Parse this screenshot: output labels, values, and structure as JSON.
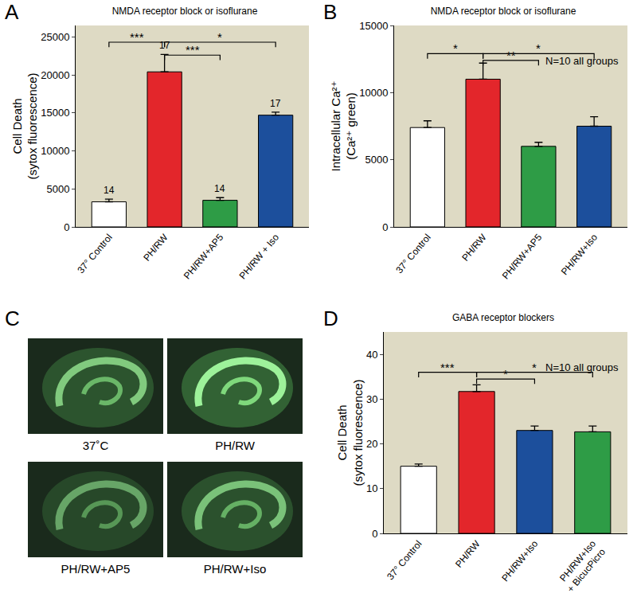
{
  "chart_data": [
    {
      "panel": "A",
      "type": "bar",
      "title": "NMDA receptor block or isoflurane",
      "ylabel": "Cell Death\n(sytox fluorescence)",
      "categories": [
        "37° Control",
        "PH/RW",
        "PH/RW+AP5",
        "PH/RW + Iso"
      ],
      "values": [
        3300,
        20400,
        3500,
        14700
      ],
      "errors": [
        350,
        2300,
        350,
        400
      ],
      "n": [
        14,
        17,
        14,
        17
      ],
      "colors": [
        "#ffffff",
        "#e3262b",
        "#2e9c46",
        "#1c4f9c"
      ],
      "ylim": [
        0,
        26500
      ],
      "yticks": [
        0,
        5000,
        10000,
        15000,
        20000,
        25000
      ],
      "comparisons": [
        {
          "from": 0,
          "to": 1,
          "y": 24300,
          "label": "***"
        },
        {
          "from": 1,
          "to": 3,
          "y": 24300,
          "label": "*"
        },
        {
          "from": 1,
          "to": 2,
          "y": 22600,
          "label": "***"
        }
      ]
    },
    {
      "panel": "B",
      "type": "bar",
      "title": "NMDA receptor block or isoflurane",
      "ylabel": "Intracellular Ca²⁺\n(Ca²⁺ green)",
      "categories": [
        "37° Control",
        "PH/RW",
        "PH/RW+AP5",
        "PH/RW+Iso"
      ],
      "values": [
        7400,
        11000,
        6000,
        7500
      ],
      "errors": [
        500,
        1200,
        300,
        700
      ],
      "note": "N=10 all groups",
      "colors": [
        "#ffffff",
        "#e3262b",
        "#2e9c46",
        "#1c4f9c"
      ],
      "ylim": [
        0,
        15000
      ],
      "yticks": [
        0,
        5000,
        10000,
        15000
      ],
      "comparisons": [
        {
          "from": 0,
          "to": 1,
          "y": 12900,
          "label": "*"
        },
        {
          "from": 1,
          "to": 3,
          "y": 12900,
          "label": "*"
        },
        {
          "from": 1,
          "to": 2,
          "y": 12400,
          "label": "**"
        }
      ]
    },
    {
      "panel": "D",
      "type": "bar",
      "title": "GABA receptor blockers",
      "ylabel": "Cell Death\n(sytox fluorescence)",
      "categories": [
        "37° Control",
        "PH/RW",
        "PH/RW+Iso",
        "PH/RW+Iso\n+ BicucPicro"
      ],
      "values": [
        15,
        31.7,
        23,
        22.7
      ],
      "errors": [
        0.5,
        1.5,
        1,
        1.3
      ],
      "note": "N=10 all groups",
      "colors": [
        "#ffffff",
        "#e3262b",
        "#1c4f9c",
        "#2e9c46"
      ],
      "ylim": [
        0,
        45
      ],
      "yticks": [
        0,
        10,
        20,
        30,
        40
      ],
      "comparisons": [
        {
          "from": 0,
          "to": 1,
          "y": 36,
          "label": "***"
        },
        {
          "from": 1,
          "to": 2,
          "y": 34.5,
          "label": "*"
        },
        {
          "from": 1,
          "to": 3,
          "y": 36,
          "label": "*"
        }
      ]
    }
  ],
  "panel_c": {
    "panel": "C",
    "images": [
      {
        "caption": "37˚C"
      },
      {
        "caption": "PH/RW"
      },
      {
        "caption": "PH/RW+AP5"
      },
      {
        "caption": "PH/RW+Iso"
      }
    ]
  }
}
